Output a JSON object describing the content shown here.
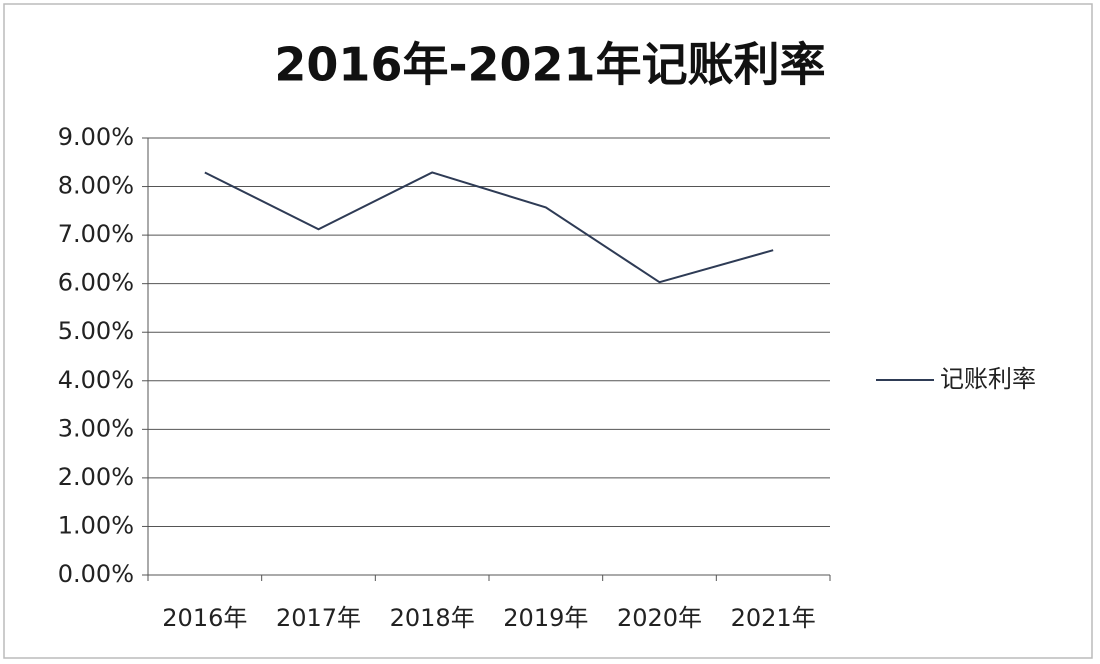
{
  "chart_data": {
    "type": "line",
    "title": "2016年-2021年记账利率",
    "categories": [
      "2016年",
      "2017年",
      "2018年",
      "2019年",
      "2020年",
      "2021年"
    ],
    "series": [
      {
        "name": "记账利率",
        "color": "#2e3b55",
        "values": [
          8.29,
          7.12,
          8.29,
          7.57,
          6.03,
          6.69
        ]
      }
    ],
    "ylim": [
      0,
      9
    ],
    "yticks": [
      {
        "value": 0,
        "label": "0.00%"
      },
      {
        "value": 1,
        "label": "1.00%"
      },
      {
        "value": 2,
        "label": "2.00%"
      },
      {
        "value": 3,
        "label": "3.00%"
      },
      {
        "value": 4,
        "label": "4.00%"
      },
      {
        "value": 5,
        "label": "5.00%"
      },
      {
        "value": 6,
        "label": "6.00%"
      },
      {
        "value": 7,
        "label": "7.00%"
      },
      {
        "value": 8,
        "label": "8.00%"
      },
      {
        "value": 9,
        "label": "9.00%"
      }
    ],
    "grid": true,
    "legend": "right"
  }
}
